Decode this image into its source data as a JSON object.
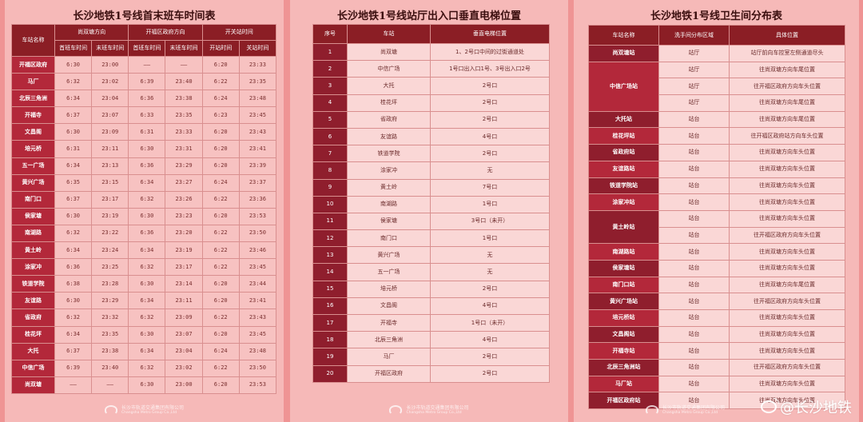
{
  "schedule": {
    "title": "长沙地铁1号线首末班车时间表",
    "header": {
      "station": "车站名称",
      "dir_north": "尚双塘方向",
      "dir_south": "开福区政府方向",
      "open_close": "开关站时间",
      "first": "首班车时间",
      "last": "末班车时间",
      "open": "开站时间",
      "close": "关站时间"
    },
    "rows": [
      [
        "开福区政府",
        "6:30",
        "23:00",
        "——",
        "——",
        "6:20",
        "23:33"
      ],
      [
        "马厂",
        "6:32",
        "23:02",
        "6:39",
        "23:40",
        "6:22",
        "23:35"
      ],
      [
        "北辰三角洲",
        "6:34",
        "23:04",
        "6:36",
        "23:38",
        "6:24",
        "23:48"
      ],
      [
        "开福寺",
        "6:37",
        "23:07",
        "6:33",
        "23:35",
        "6:23",
        "23:45"
      ],
      [
        "文昌阁",
        "6:30",
        "23:09",
        "6:31",
        "23:33",
        "6:20",
        "23:43"
      ],
      [
        "培元桥",
        "6:31",
        "23:11",
        "6:30",
        "23:31",
        "6:20",
        "23:41"
      ],
      [
        "五一广场",
        "6:34",
        "23:13",
        "6:36",
        "23:29",
        "6:20",
        "23:39"
      ],
      [
        "黄兴广场",
        "6:35",
        "23:15",
        "6:34",
        "23:27",
        "6:24",
        "23:37"
      ],
      [
        "南门口",
        "6:37",
        "23:17",
        "6:32",
        "23:26",
        "6:22",
        "23:36"
      ],
      [
        "侯家塘",
        "6:30",
        "23:19",
        "6:30",
        "23:23",
        "6:20",
        "23:53"
      ],
      [
        "南湖路",
        "6:32",
        "23:22",
        "6:36",
        "23:20",
        "6:22",
        "23:50"
      ],
      [
        "黄土岭",
        "6:34",
        "23:24",
        "6:34",
        "23:19",
        "6:22",
        "23:46"
      ],
      [
        "涂家冲",
        "6:36",
        "23:25",
        "6:32",
        "23:17",
        "6:22",
        "23:45"
      ],
      [
        "铁道学院",
        "6:38",
        "23:28",
        "6:30",
        "23:14",
        "6:20",
        "23:44"
      ],
      [
        "友谊路",
        "6:30",
        "23:29",
        "6:34",
        "23:11",
        "6:20",
        "23:41"
      ],
      [
        "省政府",
        "6:32",
        "23:32",
        "6:32",
        "23:09",
        "6:22",
        "23:43"
      ],
      [
        "桂花坪",
        "6:34",
        "23:35",
        "6:30",
        "23:07",
        "6:20",
        "23:45"
      ],
      [
        "大托",
        "6:37",
        "23:38",
        "6:34",
        "23:04",
        "6:24",
        "23:48"
      ],
      [
        "中信广场",
        "6:39",
        "23:40",
        "6:32",
        "23:02",
        "6:22",
        "23:50"
      ],
      [
        "尚双塘",
        "——",
        "——",
        "6:30",
        "23:00",
        "6:20",
        "23:53"
      ]
    ],
    "footer_cn": "长沙市轨道交通集团有限公司",
    "footer_en": "Changsha Metro Group Co.,Ltd"
  },
  "elevators": {
    "title": "长沙地铁1号线站厅出入口垂直电梯位置",
    "header": {
      "no": "序号",
      "station": "车站",
      "location": "垂直电梯位置"
    },
    "rows": [
      [
        "1",
        "尚双塘",
        "1、2号口中间的过街通道处"
      ],
      [
        "2",
        "中信广场",
        "1号口出入口1号、3号出入口2号"
      ],
      [
        "3",
        "大托",
        "2号口"
      ],
      [
        "4",
        "桂花坪",
        "2号口"
      ],
      [
        "5",
        "省政府",
        "2号口"
      ],
      [
        "6",
        "友谊路",
        "4号口"
      ],
      [
        "7",
        "铁道学院",
        "2号口"
      ],
      [
        "8",
        "涂家冲",
        "无"
      ],
      [
        "9",
        "黄土岭",
        "7号口"
      ],
      [
        "10",
        "南湖路",
        "1号口"
      ],
      [
        "11",
        "侯家塘",
        "3号口（未开）"
      ],
      [
        "12",
        "南门口",
        "1号口"
      ],
      [
        "13",
        "黄兴广场",
        "无"
      ],
      [
        "14",
        "五一广场",
        "无"
      ],
      [
        "15",
        "培元桥",
        "2号口"
      ],
      [
        "16",
        "文昌阁",
        "4号口"
      ],
      [
        "17",
        "开福寺",
        "1号口（未开）"
      ],
      [
        "18",
        "北辰三角洲",
        "4号口"
      ],
      [
        "19",
        "马厂",
        "2号口"
      ],
      [
        "20",
        "开福区政府",
        "2号口"
      ]
    ],
    "footer_cn": "长沙市轨道交通集团有限公司",
    "footer_en": "Changsha Metro Group Co.,Ltd"
  },
  "restrooms": {
    "title": "长沙地铁1号线卫生间分布表",
    "header": {
      "station": "车站名称",
      "area": "洗手间分布区域",
      "location": "具体位置"
    },
    "groups": [
      {
        "station": "尚双塘站",
        "items": [
          [
            "站厅",
            "站厅前向车控室左侧通道尽头"
          ]
        ]
      },
      {
        "station": "中信广场站",
        "items": [
          [
            "站厅",
            "往尚双塘方向车尾位置"
          ],
          [
            "站厅",
            "往开福区政府方向车头位置"
          ],
          [
            "站厅",
            "往尚双塘方向车尾位置"
          ]
        ]
      },
      {
        "station": "大托站",
        "items": [
          [
            "站台",
            "往尚双塘方向车尾位置"
          ]
        ]
      },
      {
        "station": "桂花坪站",
        "items": [
          [
            "站台",
            "往开福区政府站方向车头位置"
          ]
        ]
      },
      {
        "station": "省政府站",
        "items": [
          [
            "站台",
            "往尚双塘方向车头位置"
          ]
        ]
      },
      {
        "station": "友谊路站",
        "items": [
          [
            "站台",
            "往尚双塘方向车头位置"
          ]
        ]
      },
      {
        "station": "铁道学院站",
        "items": [
          [
            "站台",
            "往尚双塘方向车头位置"
          ]
        ]
      },
      {
        "station": "涂家冲站",
        "items": [
          [
            "站台",
            "往尚双塘方向车头位置"
          ]
        ]
      },
      {
        "station": "黄土岭站",
        "items": [
          [
            "站台",
            "往尚双塘方向车头位置"
          ],
          [
            "站台",
            "往开福区政府方向车头位置"
          ]
        ]
      },
      {
        "station": "南湖路站",
        "items": [
          [
            "站台",
            "往尚双塘方向车头位置"
          ]
        ]
      },
      {
        "station": "侯家塘站",
        "items": [
          [
            "站台",
            "往尚双塘方向车头位置"
          ]
        ]
      },
      {
        "station": "南门口站",
        "items": [
          [
            "站台",
            "往尚双塘方向车尾位置"
          ]
        ]
      },
      {
        "station": "黄兴广场站",
        "items": [
          [
            "站台",
            "往开福区政府方向车头位置"
          ]
        ]
      },
      {
        "station": "培元桥站",
        "items": [
          [
            "站台",
            "往尚双塘方向车头位置"
          ]
        ]
      },
      {
        "station": "文昌阁站",
        "items": [
          [
            "站台",
            "往尚双塘方向车头位置"
          ]
        ]
      },
      {
        "station": "开福寺站",
        "items": [
          [
            "站台",
            "往尚双塘方向车头位置"
          ]
        ]
      },
      {
        "station": "北辰三角洲站",
        "items": [
          [
            "站台",
            "往开福区政府方向车头位置"
          ]
        ]
      },
      {
        "station": "马厂站",
        "items": [
          [
            "站台",
            "往尚双塘方向车头位置"
          ]
        ]
      },
      {
        "station": "开福区政府站",
        "items": [
          [
            "站台",
            "往尚双塘方向车头位置"
          ]
        ]
      }
    ],
    "footer_cn": "长沙市轨道交通集团有限公司",
    "footer_en": "Changsha Metro Group Co.,Ltd"
  },
  "watermark": "@长沙地铁"
}
